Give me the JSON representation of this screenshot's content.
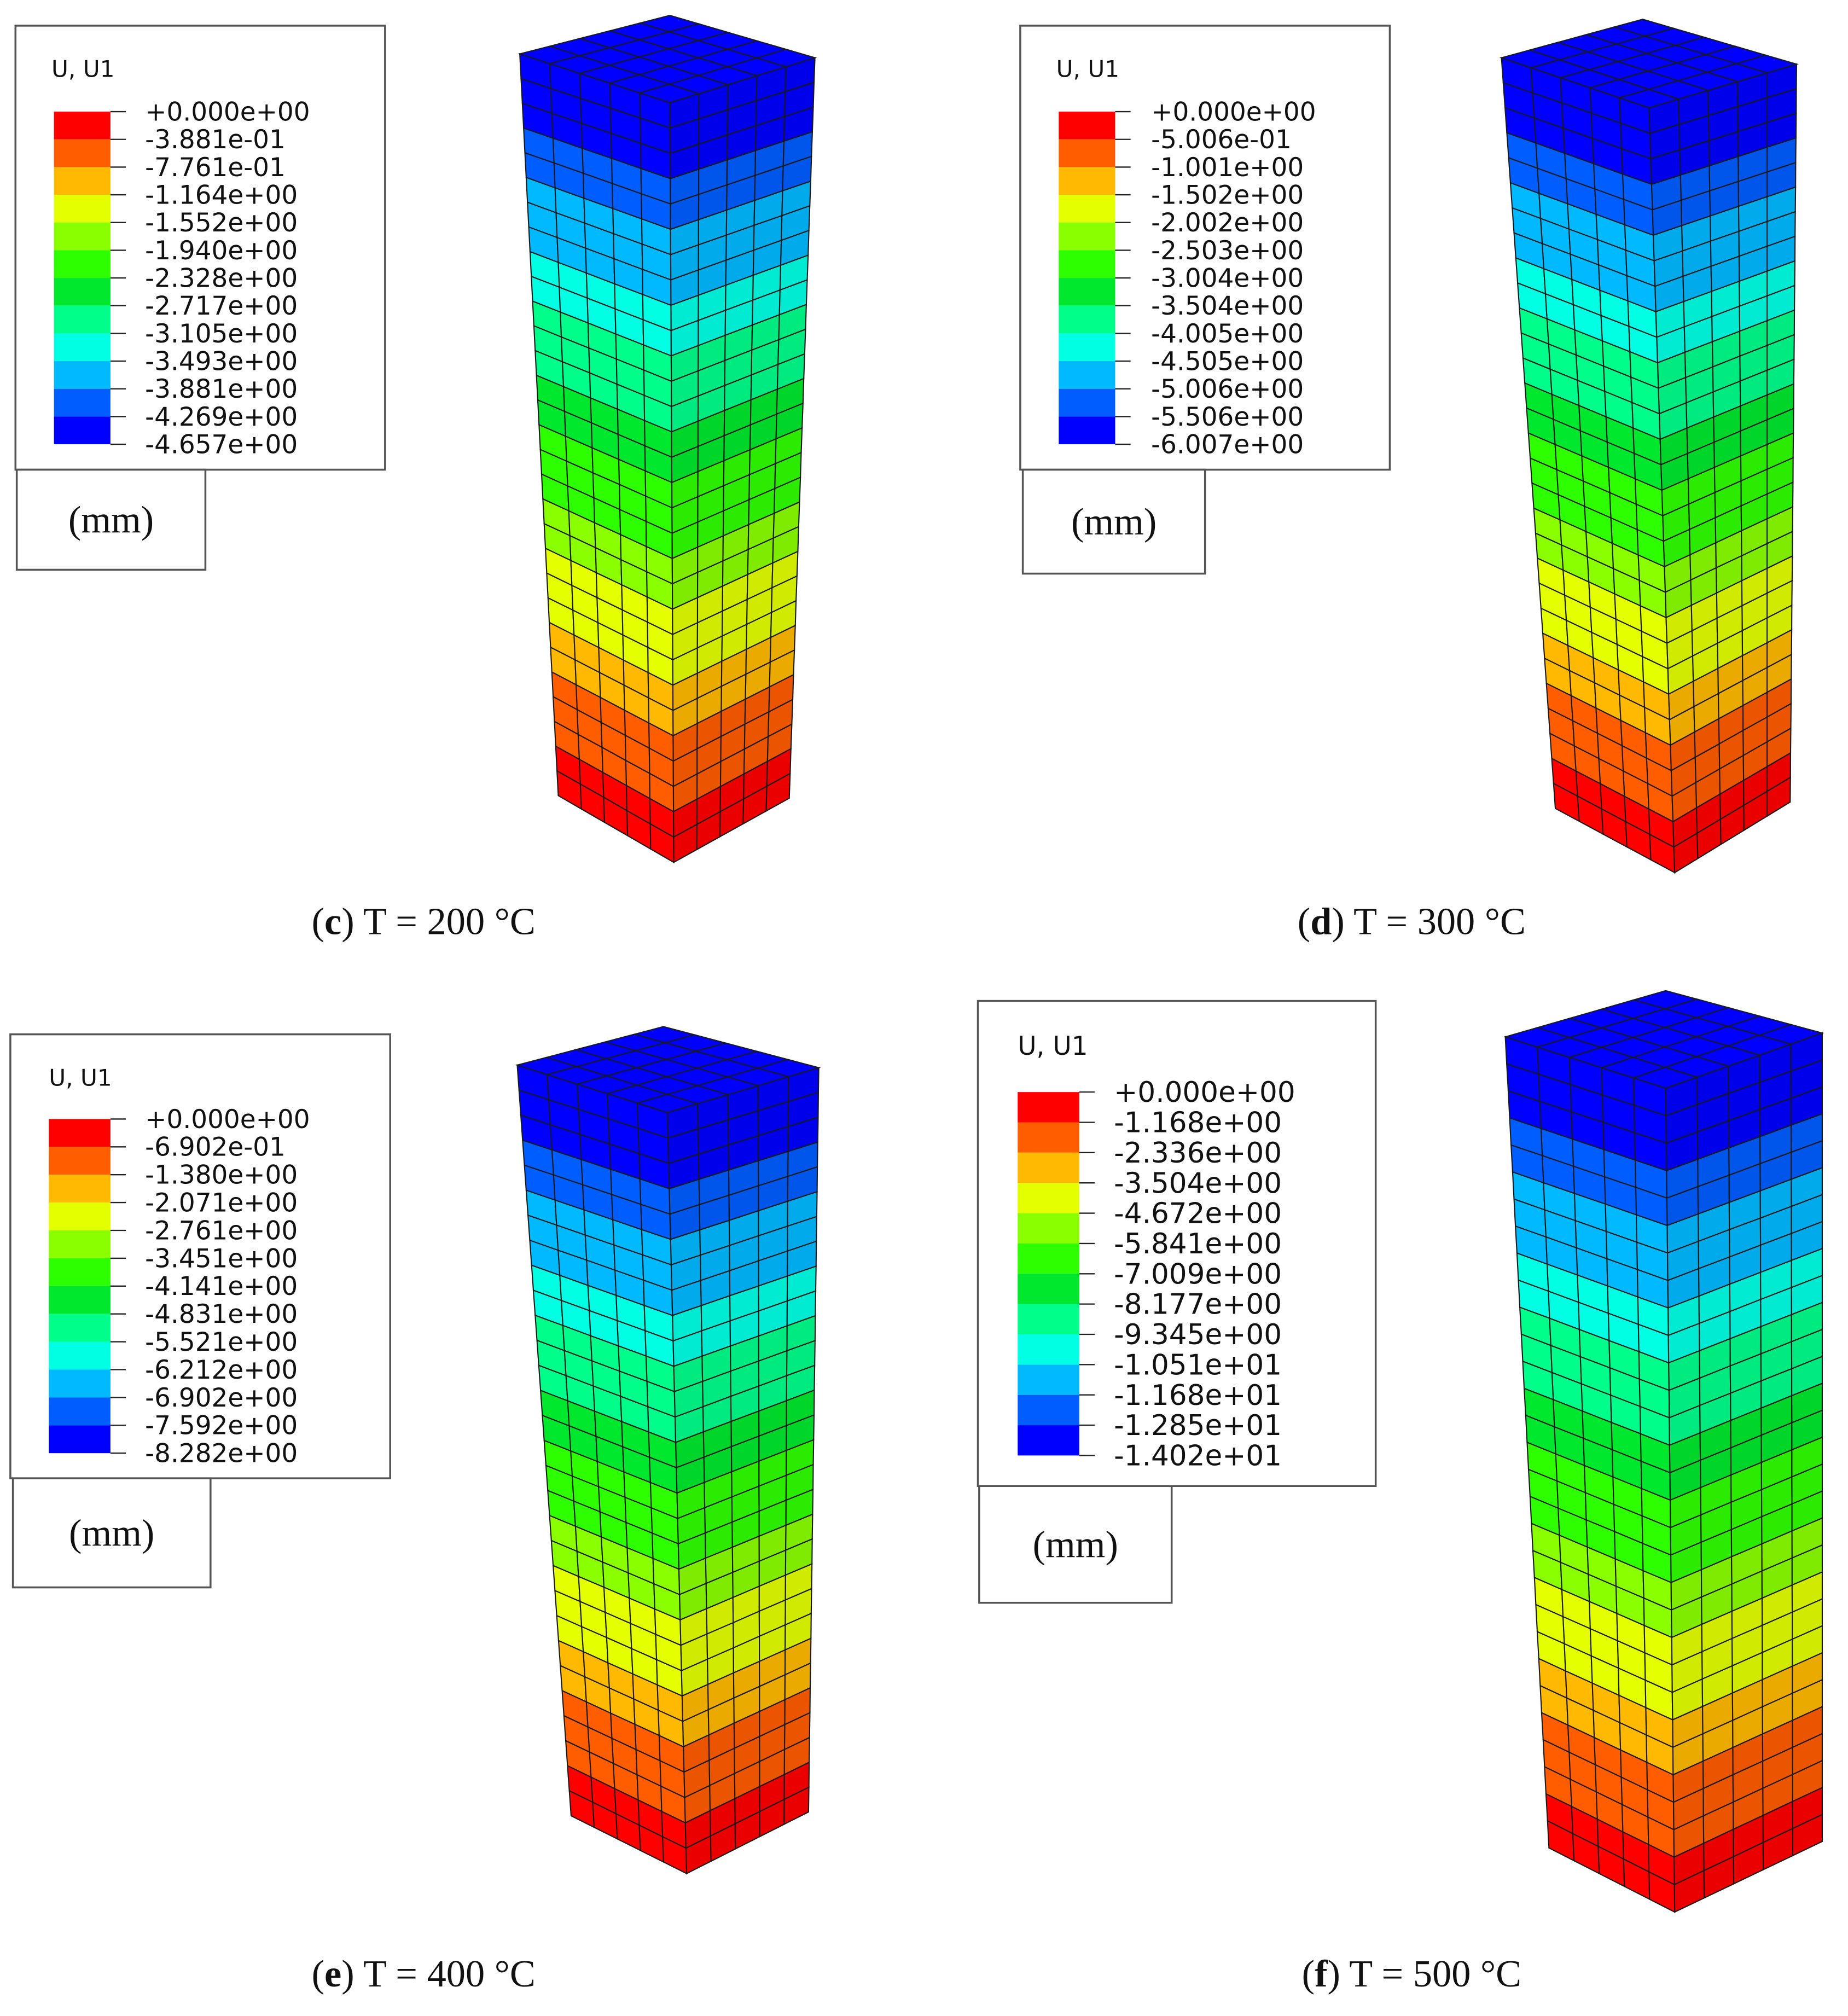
{
  "palette": [
    "#ff0000",
    "#ff5d00",
    "#ffb900",
    "#e3ff00",
    "#8aff00",
    "#2eff00",
    "#00e82e",
    "#00ff8a",
    "#00ffe3",
    "#00b9ff",
    "#005dff",
    "#0000ff"
  ],
  "panels": [
    {
      "legend": {
        "title": "U, U1",
        "labels": [
          "+0.000e+00",
          "-3.881e-01",
          "-7.761e-01",
          "-1.164e+00",
          "-1.552e+00",
          "-1.940e+00",
          "-2.328e+00",
          "-2.717e+00",
          "-3.105e+00",
          "-3.493e+00",
          "-3.881e+00",
          "-4.269e+00",
          "-4.657e+00"
        ]
      },
      "unit": "(mm)",
      "caption": {
        "open": "(",
        "letter": "c",
        "rest": ") T = 200 °C"
      }
    },
    {
      "legend": {
        "title": "U, U1",
        "labels": [
          "+0.000e+00",
          "-5.006e-01",
          "-1.001e+00",
          "-1.502e+00",
          "-2.002e+00",
          "-2.503e+00",
          "-3.004e+00",
          "-3.504e+00",
          "-4.005e+00",
          "-4.505e+00",
          "-5.006e+00",
          "-5.506e+00",
          "-6.007e+00"
        ]
      },
      "unit": "(mm)",
      "caption": {
        "open": "(",
        "letter": "d",
        "rest": ") T = 300 °C"
      }
    },
    {
      "legend": {
        "title": "U, U1",
        "labels": [
          "+0.000e+00",
          "-6.902e-01",
          "-1.380e+00",
          "-2.071e+00",
          "-2.761e+00",
          "-3.451e+00",
          "-4.141e+00",
          "-4.831e+00",
          "-5.521e+00",
          "-6.212e+00",
          "-6.902e+00",
          "-7.592e+00",
          "-8.282e+00"
        ]
      },
      "unit": "(mm)",
      "caption": {
        "open": "(",
        "letter": "e",
        "rest": ") T = 400 °C"
      }
    },
    {
      "legend": {
        "title": "U, U1",
        "labels": [
          "+0.000e+00",
          "-1.168e+00",
          "-2.336e+00",
          "-3.504e+00",
          "-4.672e+00",
          "-5.841e+00",
          "-7.009e+00",
          "-8.177e+00",
          "-9.345e+00",
          "-1.051e+01",
          "-1.168e+01",
          "-1.285e+01",
          "-1.402e+01"
        ]
      },
      "unit": "(mm)",
      "caption": {
        "open": "(",
        "letter": "f",
        "rest": ") T = 500 °C"
      }
    }
  ]
}
